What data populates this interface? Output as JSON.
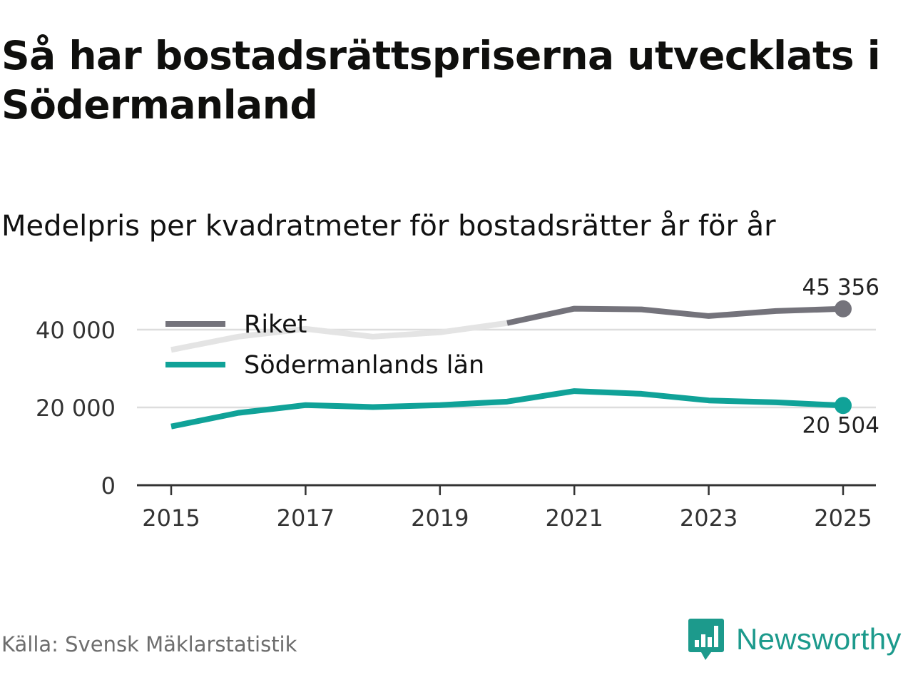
{
  "title": "Så har bostadsrättspriserna utvecklats i Södermanland",
  "subtitle": "Medelpris per kvadratmeter för bostadsrätter år för år",
  "source": "Källa: Svensk Mäklarstatistik",
  "brand": {
    "name": "Newsworthy",
    "logo_icon": "bar-chart-speech-bubble-icon",
    "color": "#1c9a8c"
  },
  "colors": {
    "riket": "#74737b",
    "riket_faded": "#e4e4e4",
    "lan": "#10a298",
    "grid": "#dddddd",
    "axis": "#333333",
    "text": "#111111"
  },
  "chart_data": {
    "type": "line",
    "title": "Så har bostadsrättspriserna utvecklats i Södermanland",
    "subtitle": "Medelpris per kvadratmeter för bostadsrätter år för år",
    "xlabel": "",
    "ylabel": "",
    "x": [
      2015,
      2016,
      2017,
      2018,
      2019,
      2020,
      2021,
      2022,
      2023,
      2024,
      2025
    ],
    "x_ticks": [
      "2015",
      "2017",
      "2019",
      "2021",
      "2023",
      "2025"
    ],
    "x_tick_values": [
      2015,
      2017,
      2019,
      2021,
      2023,
      2025
    ],
    "y_ticks": [
      "0",
      "20 000",
      "40 000"
    ],
    "y_tick_values": [
      0,
      20000,
      40000
    ],
    "ylim": [
      0,
      50000
    ],
    "xlim": [
      2014.5,
      2025.5
    ],
    "grid": true,
    "legend_placement": "top-left",
    "series": [
      {
        "name": "Riket",
        "key": "riket",
        "values": [
          34800,
          38200,
          40200,
          38200,
          39300,
          41700,
          45400,
          45200,
          43500,
          44800,
          45356
        ],
        "faded_until_index": 5,
        "end_label": "45 356"
      },
      {
        "name": "Södermanlands län",
        "key": "lan",
        "values": [
          15100,
          18600,
          20600,
          20100,
          20600,
          21500,
          24200,
          23500,
          21800,
          21300,
          20504
        ],
        "end_label": "20 504"
      }
    ]
  }
}
